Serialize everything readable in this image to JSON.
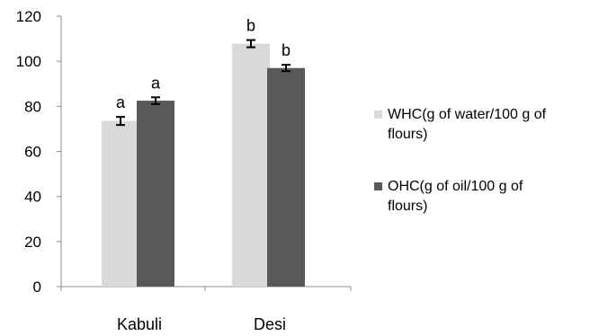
{
  "chart_data": {
    "type": "bar",
    "categories": [
      "Kabuli",
      "Desi"
    ],
    "series": [
      {
        "name": "WHC(g of water/100 g of flours)",
        "legend_lines": [
          "WHC(g of water/100 g of",
          "flours)"
        ],
        "color": "#d9d9d9",
        "values": [
          73.5,
          107.8
        ],
        "errors": [
          1.8,
          1.6
        ],
        "significance": [
          "a",
          "b"
        ]
      },
      {
        "name": "OHC(g of oil/100 g of flours)",
        "legend_lines": [
          "OHC(g of oil/100 g of",
          "flours)"
        ],
        "color": "#595959",
        "values": [
          82.5,
          97.0
        ],
        "errors": [
          1.5,
          1.4
        ],
        "significance": [
          "a",
          "b"
        ]
      }
    ],
    "ylim": [
      0,
      120
    ],
    "yticks": [
      0,
      20,
      40,
      60,
      80,
      100,
      120
    ],
    "grid": false,
    "legend_position": "right"
  }
}
